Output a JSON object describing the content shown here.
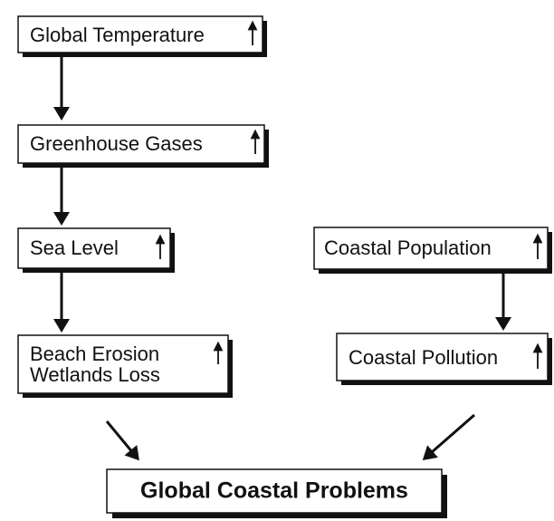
{
  "nodes": [
    {
      "lines": [
        "Global Temperature"
      ]
    },
    {
      "lines": [
        "Greenhouse Gases"
      ]
    },
    {
      "lines": [
        "Sea Level"
      ]
    },
    {
      "lines": [
        "Beach Erosion",
        "Wetlands Loss"
      ]
    },
    {
      "lines": [
        "Coastal Population"
      ]
    },
    {
      "lines": [
        "Coastal Pollution"
      ]
    },
    {
      "lines": [
        "Global Coastal Problems"
      ]
    }
  ]
}
